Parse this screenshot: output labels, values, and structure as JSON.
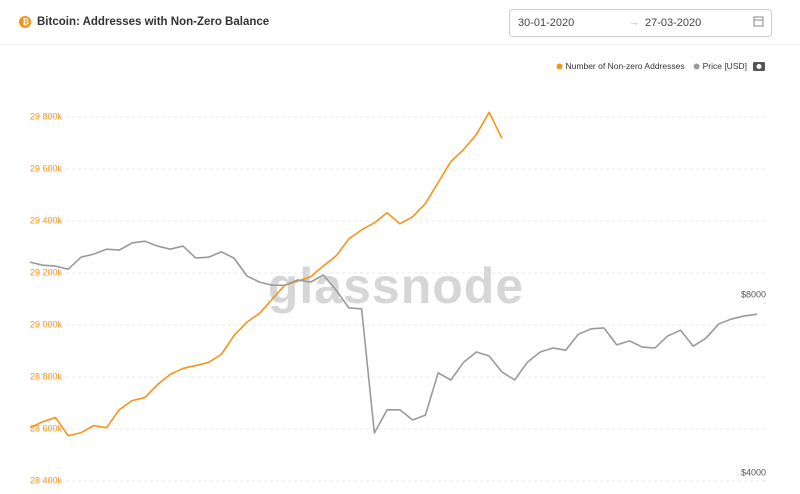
{
  "date_range": {
    "from": "30-01-2020",
    "to": "27-03-2020"
  },
  "chart_data": {
    "type": "line",
    "title": "Bitcoin: Addresses with Non-Zero Balance",
    "watermark": "glassnode",
    "legend": "top-right",
    "grid": true,
    "ylim": [
      28400000,
      30000000
    ],
    "yticks": [
      {
        "value": 28400000,
        "label": "28 400k"
      },
      {
        "value": 28600000,
        "label": "28 600k"
      },
      {
        "value": 28800000,
        "label": "28 800k"
      },
      {
        "value": 29000000,
        "label": "29 000k"
      },
      {
        "value": 29200000,
        "label": "29 200k"
      },
      {
        "value": 29400000,
        "label": "29 400k"
      },
      {
        "value": 29600000,
        "label": "29 600k"
      },
      {
        "value": 29800000,
        "label": "29 800k"
      }
    ],
    "y2lim": [
      4000,
      13350
    ],
    "y2ticks": [
      {
        "value": 4000,
        "label": "$4000"
      },
      {
        "value": 8000,
        "label": "$8000"
      }
    ],
    "series": [
      {
        "name": "Number of Non-zero Addresses",
        "color": "#f7931a",
        "values": [
          28605000,
          28628000,
          28644000,
          28574000,
          28586000,
          28613000,
          28605000,
          28674000,
          28709000,
          28721000,
          28771000,
          28810000,
          28833000,
          28844000,
          28856000,
          28887000,
          28960000,
          29011000,
          29045000,
          29100000,
          29154000,
          29169000,
          29185000,
          29227000,
          29266000,
          29331000,
          29366000,
          29393000,
          29432000,
          29389000,
          29416000,
          29467000,
          29548000,
          29629000,
          29675000,
          29733000,
          29818000,
          29718000,
          null,
          null,
          null,
          null,
          null,
          null,
          null,
          null,
          null,
          null,
          null,
          null,
          null,
          null,
          null,
          null,
          null,
          null,
          null,
          null
        ]
      },
      {
        "name": "Price [USD]",
        "color": "#9a9a9a",
        "axis": "y2",
        "values": [
          8920,
          8850,
          8830,
          8760,
          9030,
          9100,
          9210,
          9190,
          9350,
          9390,
          9280,
          9210,
          9280,
          9010,
          9030,
          9150,
          9010,
          8610,
          8470,
          8400,
          8400,
          8520,
          8470,
          8630,
          8290,
          7890,
          7870,
          5080,
          5600,
          5600,
          5370,
          5480,
          6430,
          6270,
          6670,
          6900,
          6810,
          6450,
          6270,
          6670,
          6900,
          6990,
          6940,
          7300,
          7420,
          7440,
          7060,
          7150,
          7010,
          6990,
          7260,
          7390,
          7030,
          7210,
          7530,
          7640,
          7710,
          7750
        ]
      }
    ]
  }
}
